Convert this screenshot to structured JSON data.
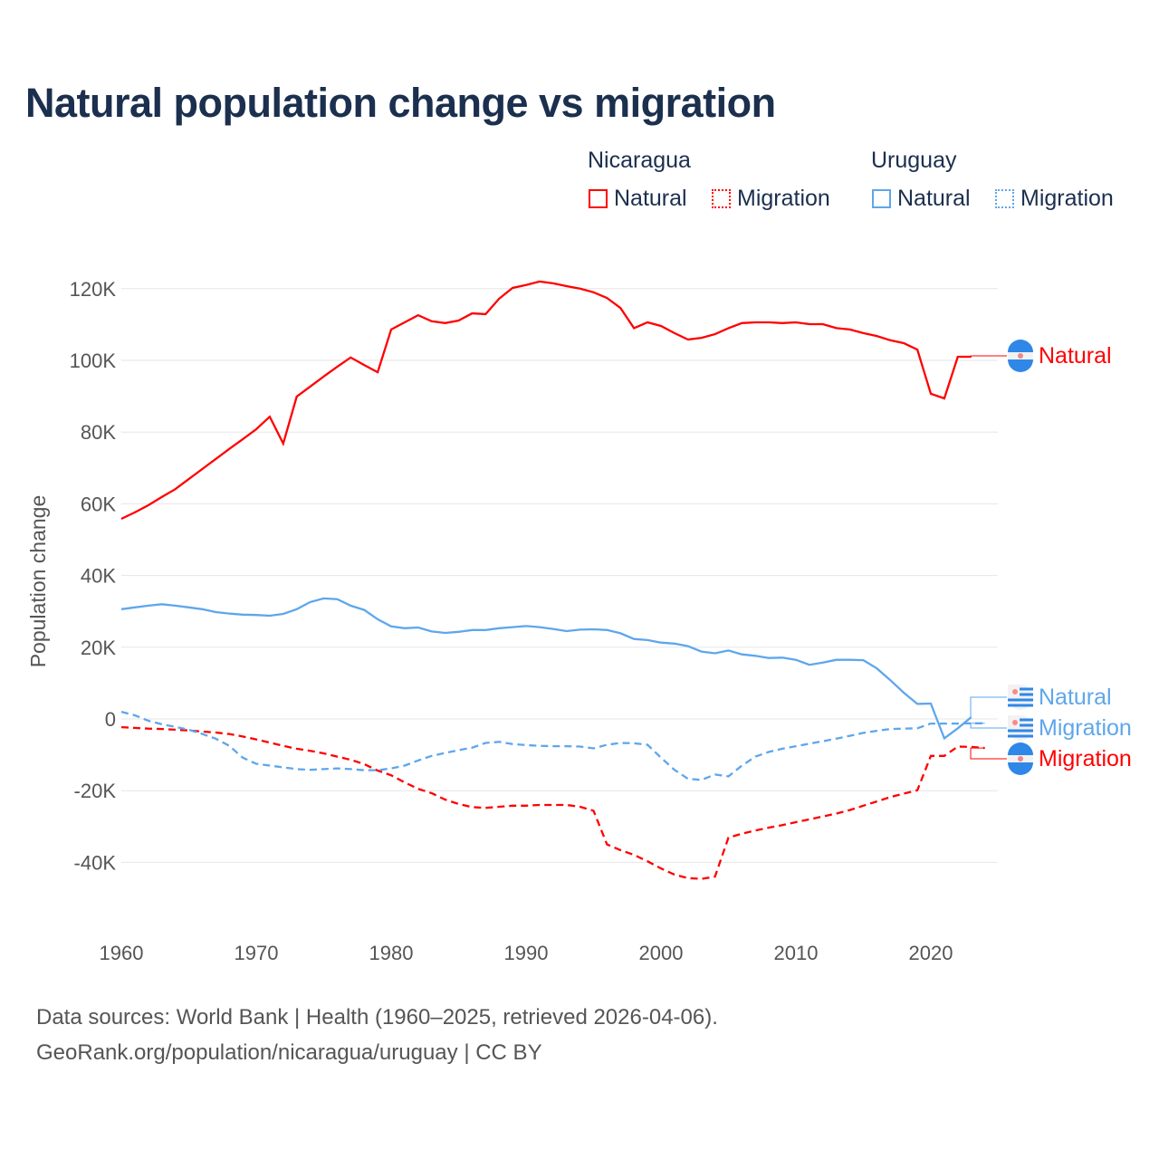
{
  "title": "Natural population change vs migration",
  "legend": {
    "groups": [
      {
        "name": "Nicaragua",
        "items": [
          "Natural",
          "Migration"
        ],
        "color": "#ff0000"
      },
      {
        "name": "Uruguay",
        "items": [
          "Natural",
          "Migration"
        ],
        "color": "#5ea6ec"
      }
    ]
  },
  "source_lines": [
    "Data sources: World Bank | Health (1960–2025, retrieved 2026-04-06).",
    "GeoRank.org/population/nicaragua/uruguay | CC BY"
  ],
  "chart_data": {
    "type": "line",
    "title": "Natural population change vs migration",
    "xlabel": "",
    "ylabel": "Population change",
    "xlim": [
      1960,
      2025
    ],
    "ylim": [
      -55000,
      125000
    ],
    "xticks": [
      1960,
      1970,
      1980,
      1990,
      2000,
      2010,
      2020
    ],
    "yticks": [
      -40000,
      -20000,
      0,
      20000,
      40000,
      60000,
      80000,
      100000,
      120000
    ],
    "ytick_labels": [
      "-40K",
      "-20K",
      "0",
      "20K",
      "40K",
      "60K",
      "80K",
      "100K",
      "120K"
    ],
    "grid": true,
    "legend_position": "top-right",
    "x_start": 1960,
    "series": [
      {
        "name": "Natural",
        "country": "Nicaragua",
        "color": "#ff0000",
        "dash": "solid",
        "end_label": "Natural",
        "values": [
          55.8,
          57.6,
          59.6,
          61.9,
          64.1,
          66.9,
          69.7,
          72.5,
          75.3,
          78,
          80.8,
          84.3,
          76.8,
          89.9,
          92.7,
          95.5,
          98.2,
          100.8,
          98.7,
          96.7,
          108.6,
          110.6,
          112.6,
          110.9,
          110.4,
          111.1,
          113.1,
          112.9,
          117.2,
          120.2,
          121,
          122,
          121.5,
          120.7,
          120,
          119,
          117.4,
          114.6,
          109,
          110.6,
          109.6,
          107.6,
          105.8,
          106.3,
          107.3,
          109,
          110.4,
          110.6,
          110.6,
          110.4,
          110.6,
          110.1,
          110.1,
          109,
          108.6,
          107.6,
          106.8,
          105.6,
          104.8,
          103,
          90.7,
          89.4,
          101,
          101
        ]
      },
      {
        "name": "Migration",
        "country": "Nicaragua",
        "color": "#ff0000",
        "dash": "dashed",
        "end_label": "Migration",
        "values": [
          -2.3,
          -2.5,
          -2.7,
          -2.8,
          -3,
          -3.2,
          -3.5,
          -3.8,
          -4.2,
          -4.9,
          -5.7,
          -6.6,
          -7.5,
          -8.3,
          -8.9,
          -9.6,
          -10.5,
          -11.4,
          -12.6,
          -14.4,
          -15.7,
          -17.7,
          -19.5,
          -20.7,
          -22.5,
          -23.7,
          -24.6,
          -24.8,
          -24.5,
          -24.2,
          -24.2,
          -24,
          -24,
          -24,
          -24.5,
          -25.6,
          -35,
          -36.6,
          -37.9,
          -39.7,
          -41.7,
          -43.4,
          -44.4,
          -44.6,
          -44,
          -33.1,
          -32,
          -31.1,
          -30.3,
          -29.6,
          -28.8,
          -28,
          -27.2,
          -26.4,
          -25.4,
          -24.2,
          -23,
          -21.8,
          -20.8,
          -19.9,
          -10.3,
          -10.3,
          -7.7,
          -7.8,
          -8.1
        ]
      },
      {
        "name": "Natural",
        "country": "Uruguay",
        "color": "#5ea6ec",
        "dash": "solid",
        "end_label": "Natural",
        "values": [
          30.6,
          31.1,
          31.6,
          32,
          31.6,
          31.1,
          30.6,
          29.8,
          29.4,
          29.1,
          29,
          28.8,
          29.3,
          30.6,
          32.6,
          33.6,
          33.4,
          31.6,
          30.4,
          27.8,
          25.8,
          25.3,
          25.5,
          24.4,
          24,
          24.3,
          24.8,
          24.8,
          25.3,
          25.6,
          25.9,
          25.6,
          25.1,
          24.5,
          24.9,
          25,
          24.8,
          23.9,
          22.3,
          22,
          21.3,
          21,
          20.3,
          18.8,
          18.3,
          19.1,
          18,
          17.6,
          17,
          17.1,
          16.5,
          15.1,
          15.7,
          16.5,
          16.5,
          16.4,
          14.1,
          10.8,
          7.3,
          4.2,
          4.3,
          -5.4,
          -2.6,
          0.5
        ]
      },
      {
        "name": "Migration",
        "country": "Uruguay",
        "color": "#5ea6ec",
        "dash": "dashed",
        "end_label": "Migration",
        "values": [
          2,
          1,
          -0.5,
          -1.5,
          -2.2,
          -3,
          -4.2,
          -5.5,
          -7.5,
          -10.8,
          -12.5,
          -13,
          -13.5,
          -14,
          -14.2,
          -14,
          -13.8,
          -14,
          -14.3,
          -14.3,
          -13.8,
          -13,
          -11.6,
          -10.3,
          -9.5,
          -8.7,
          -8,
          -6.7,
          -6.4,
          -7,
          -7.3,
          -7.5,
          -7.6,
          -7.6,
          -7.7,
          -8.2,
          -7.2,
          -6.7,
          -6.8,
          -7.2,
          -10.8,
          -14.2,
          -16.7,
          -17,
          -15.5,
          -16,
          -13,
          -10.5,
          -9.2,
          -8.3,
          -7.6,
          -6.9,
          -6.2,
          -5.5,
          -4.7,
          -3.9,
          -3.3,
          -2.8,
          -2.7,
          -2.6,
          -1.3,
          -1.3,
          -1.3,
          -1.2,
          -1.2
        ]
      }
    ],
    "value_unit": "thousands"
  }
}
